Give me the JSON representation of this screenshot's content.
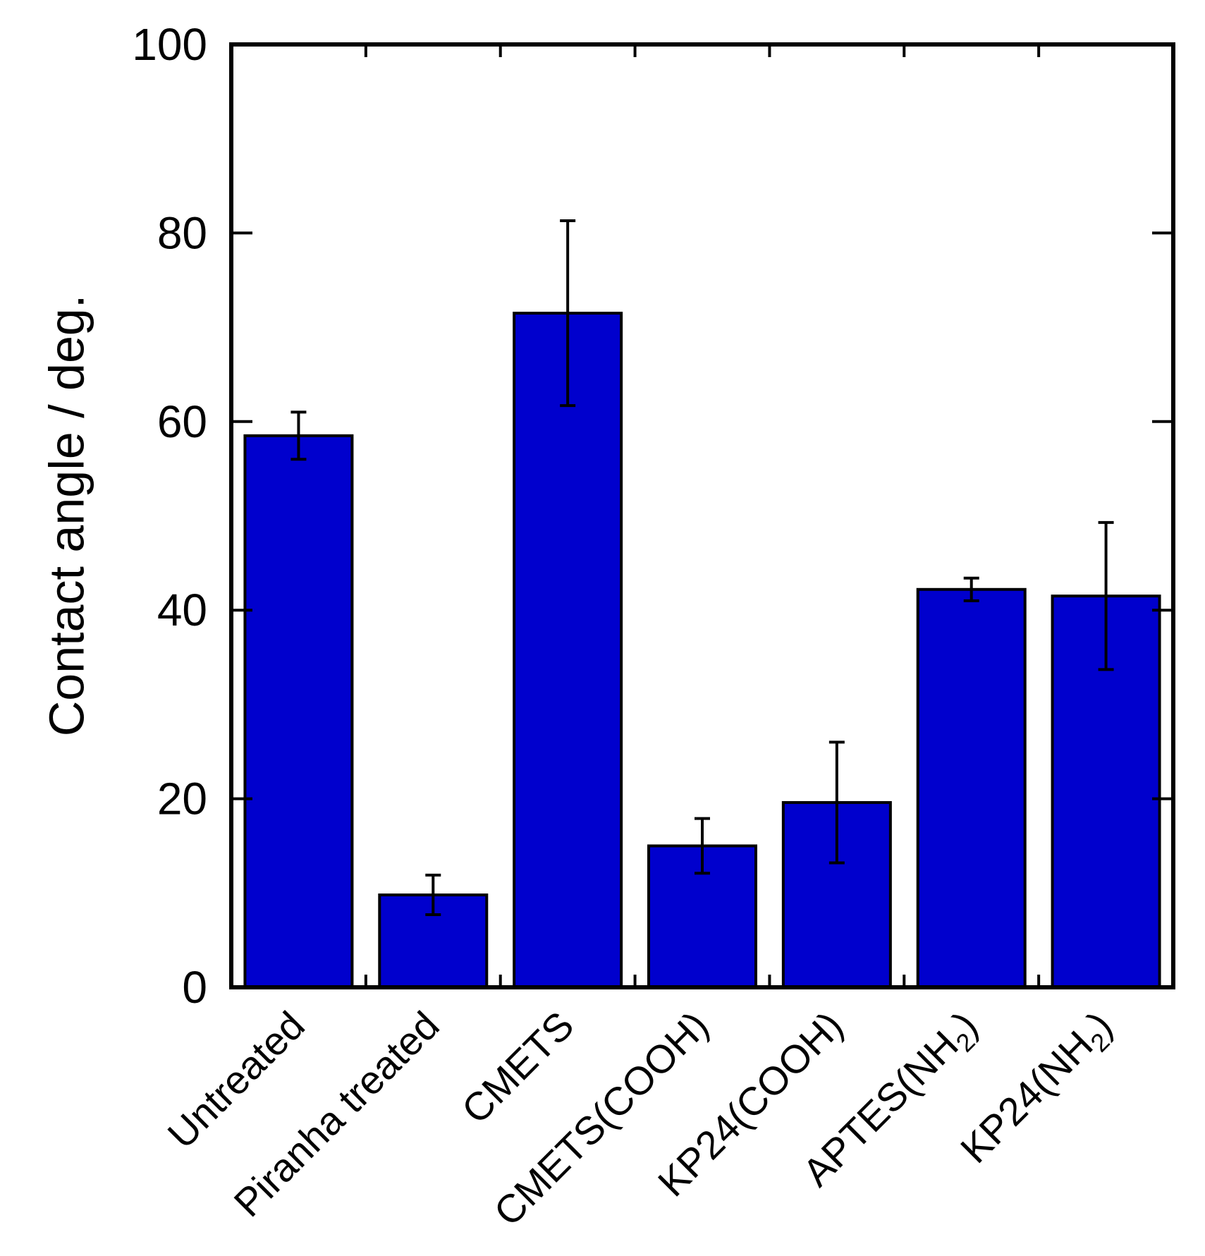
{
  "chart_data": {
    "type": "bar",
    "title": "",
    "xlabel": "",
    "ylabel": "Contact angle / deg.",
    "ylim": [
      0,
      100
    ],
    "yticks": [
      "0",
      "20",
      "40",
      "60",
      "80",
      "100"
    ],
    "categories": [
      {
        "text": "Untreated",
        "sub": "",
        "after": ""
      },
      {
        "text": "Piranha treated",
        "sub": "",
        "after": ""
      },
      {
        "text": "CMETS",
        "sub": "",
        "after": ""
      },
      {
        "text": "CMETS(COOH)",
        "sub": "",
        "after": ""
      },
      {
        "text": "KP24(COOH)",
        "sub": "",
        "after": ""
      },
      {
        "text": "APTES(NH",
        "sub": "2",
        "after": ")"
      },
      {
        "text": "KP24(NH",
        "sub": "2",
        "after": ")"
      }
    ],
    "values": [
      58.5,
      9.8,
      71.5,
      15.0,
      19.6,
      42.2,
      41.5
    ],
    "errors": [
      2.5,
      2.1,
      9.8,
      2.9,
      6.4,
      1.2,
      7.8
    ],
    "bar_color": "#0000cd",
    "grid": false
  }
}
